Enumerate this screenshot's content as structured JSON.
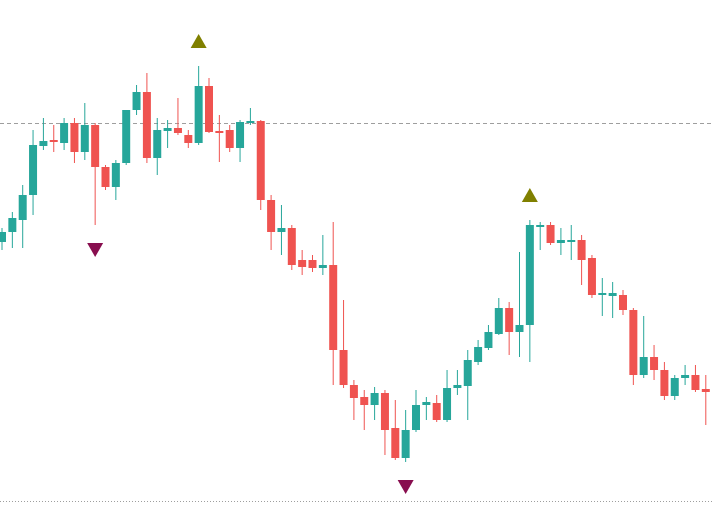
{
  "chart_data": {
    "type": "candlestick",
    "ylim": [
      0,
      525
    ],
    "up_color": "#26a69a",
    "down_color": "#ef5350",
    "open": [
      283,
      293,
      305,
      330,
      379,
      385,
      382,
      402,
      373,
      400,
      358,
      338,
      362,
      415,
      433,
      367,
      394,
      397,
      390,
      382,
      439,
      394,
      395,
      377,
      402,
      404,
      325,
      293,
      297,
      265,
      265,
      257,
      260,
      175,
      140,
      128,
      120,
      132,
      97,
      67,
      95,
      120,
      122,
      105,
      137,
      139,
      163,
      177,
      191,
      217,
      193,
      200,
      298,
      300,
      282,
      283,
      285,
      267,
      230,
      229,
      230,
      215,
      150,
      168,
      155,
      129,
      147,
      150,
      136
    ],
    "high": [
      297,
      313,
      340,
      395,
      407,
      400,
      407,
      407,
      422,
      402,
      360,
      365,
      415,
      440,
      452,
      407,
      405,
      427,
      395,
      459,
      447,
      410,
      400,
      405,
      417,
      405,
      330,
      320,
      300,
      275,
      270,
      290,
      303,
      225,
      145,
      135,
      138,
      135,
      125,
      115,
      135,
      128,
      130,
      155,
      155,
      175,
      185,
      200,
      227,
      223,
      273,
      305,
      303,
      303,
      297,
      300,
      290,
      270,
      247,
      243,
      235,
      217,
      209,
      180,
      163,
      150,
      160,
      160,
      150
    ],
    "low": [
      275,
      277,
      277,
      310,
      375,
      373,
      375,
      362,
      365,
      300,
      335,
      325,
      360,
      410,
      362,
      350,
      377,
      390,
      377,
      380,
      392,
      363,
      373,
      363,
      400,
      315,
      275,
      270,
      255,
      250,
      253,
      250,
      140,
      137,
      105,
      95,
      105,
      70,
      65,
      63,
      93,
      105,
      103,
      103,
      130,
      105,
      160,
      175,
      190,
      170,
      168,
      163,
      275,
      280,
      270,
      265,
      240,
      227,
      209,
      207,
      210,
      140,
      147,
      145,
      125,
      125,
      140,
      133,
      100
    ],
    "close": [
      293,
      307,
      330,
      380,
      384,
      383,
      402,
      373,
      400,
      358,
      338,
      362,
      415,
      433,
      367,
      395,
      397,
      392,
      382,
      439,
      393,
      392,
      377,
      403,
      404,
      325,
      293,
      297,
      260,
      258,
      257,
      260,
      175,
      140,
      127,
      120,
      132,
      95,
      67,
      95,
      120,
      123,
      105,
      137,
      140,
      165,
      178,
      193,
      217,
      193,
      200,
      300,
      300,
      282,
      285,
      285,
      265,
      230,
      232,
      232,
      215,
      150,
      168,
      155,
      129,
      147,
      150,
      135,
      133
    ],
    "markers": [
      {
        "index": 9,
        "direction": "down",
        "color": "#880e4f"
      },
      {
        "index": 19,
        "direction": "up",
        "color": "#808000"
      },
      {
        "index": 39,
        "direction": "down",
        "color": "#880e4f"
      },
      {
        "index": 51,
        "direction": "up",
        "color": "#808000"
      }
    ],
    "reference_lines": [
      {
        "value": 402,
        "style": "dashed",
        "color": "#9e9e9e"
      },
      {
        "value": 24,
        "style": "dotted",
        "color": "#9e9e9e"
      }
    ]
  }
}
